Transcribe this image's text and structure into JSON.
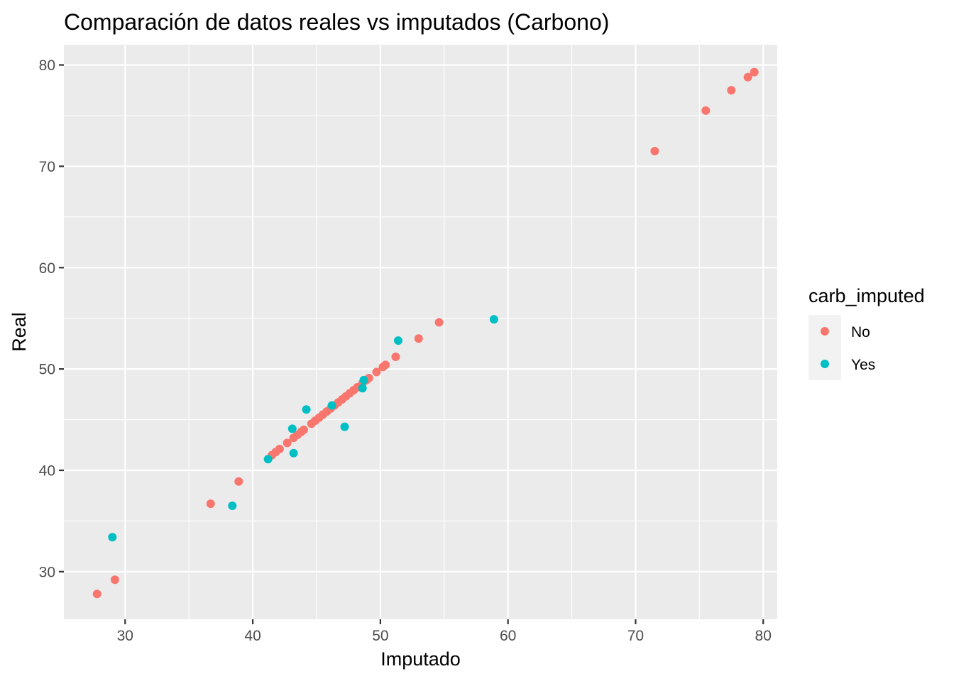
{
  "chart_data": {
    "type": "scatter",
    "title": "Comparación de datos reales vs imputados (Carbono)",
    "xlabel": "Imputado",
    "ylabel": "Real",
    "xlim": [
      25.2,
      81.1
    ],
    "ylim": [
      25.3,
      82.0
    ],
    "x_ticks": [
      30,
      40,
      50,
      60,
      70,
      80
    ],
    "y_ticks": [
      30,
      40,
      50,
      60,
      70,
      80
    ],
    "grid": true,
    "legend": {
      "title": "carb_imputed",
      "placement": "right",
      "entries": [
        {
          "label": "No",
          "color": "#F8766D"
        },
        {
          "label": "Yes",
          "color": "#00BFC4"
        }
      ]
    },
    "series": [
      {
        "name": "No",
        "color": "#F8766D",
        "points": [
          [
            27.8,
            27.8
          ],
          [
            29.2,
            29.2
          ],
          [
            36.7,
            36.7
          ],
          [
            38.9,
            38.9
          ],
          [
            41.5,
            41.5
          ],
          [
            41.8,
            41.8
          ],
          [
            42.1,
            42.1
          ],
          [
            42.7,
            42.7
          ],
          [
            43.2,
            43.2
          ],
          [
            43.5,
            43.5
          ],
          [
            43.8,
            43.8
          ],
          [
            44.0,
            44.0
          ],
          [
            44.6,
            44.6
          ],
          [
            44.9,
            44.9
          ],
          [
            45.2,
            45.2
          ],
          [
            45.5,
            45.5
          ],
          [
            45.8,
            45.8
          ],
          [
            46.1,
            46.1
          ],
          [
            46.4,
            46.4
          ],
          [
            46.7,
            46.7
          ],
          [
            47.0,
            47.0
          ],
          [
            47.3,
            47.3
          ],
          [
            47.6,
            47.6
          ],
          [
            47.9,
            47.9
          ],
          [
            48.2,
            48.2
          ],
          [
            48.6,
            48.6
          ],
          [
            48.9,
            48.9
          ],
          [
            49.1,
            49.1
          ],
          [
            49.7,
            49.7
          ],
          [
            50.2,
            50.2
          ],
          [
            50.4,
            50.4
          ],
          [
            51.2,
            51.2
          ],
          [
            53.0,
            53.0
          ],
          [
            54.6,
            54.6
          ],
          [
            71.5,
            71.5
          ],
          [
            75.5,
            75.5
          ],
          [
            77.5,
            77.5
          ],
          [
            78.8,
            78.8
          ],
          [
            79.3,
            79.3
          ]
        ]
      },
      {
        "name": "Yes",
        "color": "#00BFC4",
        "points": [
          [
            29.0,
            33.4
          ],
          [
            38.4,
            36.5
          ],
          [
            41.2,
            41.1
          ],
          [
            43.1,
            44.1
          ],
          [
            43.2,
            41.7
          ],
          [
            44.2,
            46.0
          ],
          [
            46.2,
            46.4
          ],
          [
            47.2,
            44.3
          ],
          [
            48.6,
            48.1
          ],
          [
            48.7,
            48.9
          ],
          [
            51.4,
            52.8
          ],
          [
            58.9,
            54.9
          ]
        ]
      }
    ]
  }
}
